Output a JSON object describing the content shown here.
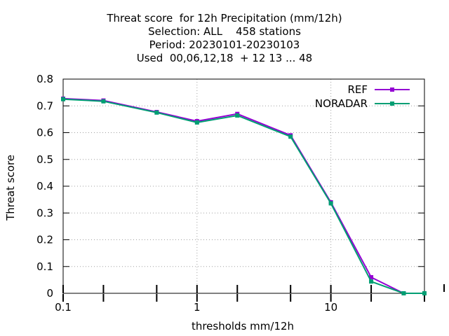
{
  "chart_data": {
    "type": "line",
    "title_lines": [
      "Threat score  for 12h Precipitation (mm/12h)",
      "Selection: ALL    458 stations",
      "Period: 20230101-20230103",
      "Used  00,06,12,18  + 12 13 ... 48"
    ],
    "xlabel": "thresholds mm/12h",
    "ylabel": "Threat score",
    "x_scale": "log",
    "xlim": [
      0.1,
      50
    ],
    "ylim": [
      0,
      0.8
    ],
    "x_tick_labels": [
      "0.1",
      "1",
      "10"
    ],
    "y_tick_labels": [
      "0",
      "0.1",
      "0.2",
      "0.3",
      "0.4",
      "0.5",
      "0.6",
      "0.7",
      "0.8"
    ],
    "grid": true,
    "legend_position": "top-right",
    "x": [
      0.1,
      0.2,
      0.5,
      1,
      2,
      5,
      10,
      20,
      35,
      50
    ],
    "series": [
      {
        "name": "REF",
        "color": "#9400d3",
        "values": [
          0.727,
          0.72,
          0.677,
          0.643,
          0.67,
          0.59,
          0.34,
          0.06,
          0.0,
          0.0
        ]
      },
      {
        "name": "NORADAR",
        "color": "#009e73",
        "values": [
          0.725,
          0.717,
          0.675,
          0.638,
          0.664,
          0.585,
          0.336,
          0.044,
          0.0,
          0.0
        ]
      }
    ]
  }
}
